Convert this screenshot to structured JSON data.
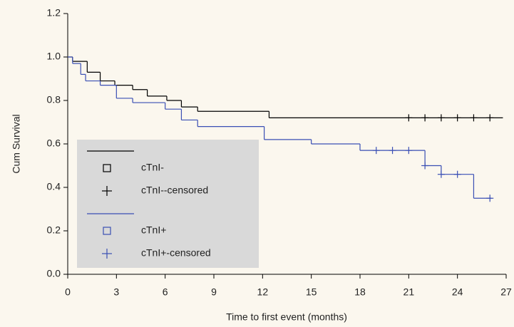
{
  "chart_data": {
    "type": "step",
    "x_label": "Time to first event (months)",
    "y_label": "Cum Survival",
    "xlim": [
      0,
      27
    ],
    "xticks": [
      0,
      3,
      6,
      9,
      12,
      15,
      18,
      21,
      24,
      27
    ],
    "ylim": [
      0,
      1.2
    ],
    "yticks": [
      {
        "value": 0,
        "label": "0.0"
      },
      0.2,
      0.4,
      0.6,
      0.8,
      {
        "value": 1,
        "label": "1.0"
      },
      1.2
    ],
    "grid": false,
    "legend": "lower-left",
    "series": [
      {
        "name": "cTnI-",
        "color": "#000000",
        "x": [
          0,
          0.3,
          1.2,
          2.0,
          2.9,
          4.0,
          4.9,
          6.1,
          7.0,
          8.0,
          12.4,
          26.8
        ],
        "values": [
          1.0,
          0.98,
          0.93,
          0.89,
          0.87,
          0.85,
          0.82,
          0.8,
          0.77,
          0.75,
          0.72,
          0.72
        ]
      },
      {
        "name": "cTnI--censored",
        "color": "#000000",
        "marker": "plus",
        "x": [
          21,
          22,
          23,
          24,
          25,
          26
        ],
        "values": [
          0.72,
          0.72,
          0.72,
          0.72,
          0.72,
          0.72
        ]
      },
      {
        "name": "cTnI+",
        "color": "#3a4fb4",
        "x": [
          0,
          0.3,
          0.8,
          1.1,
          2.0,
          3.0,
          4.0,
          6.0,
          7.0,
          8.0,
          12.1,
          15.0,
          18.0,
          22.0,
          23.0,
          25.0,
          26.1
        ],
        "values": [
          1.0,
          0.97,
          0.92,
          0.89,
          0.87,
          0.81,
          0.79,
          0.76,
          0.71,
          0.68,
          0.62,
          0.6,
          0.57,
          0.5,
          0.46,
          0.35,
          0.35
        ]
      },
      {
        "name": "cTnI+-censored",
        "color": "#3a4fb4",
        "marker": "plus",
        "x": [
          19,
          20,
          21,
          22,
          23,
          24,
          26
        ],
        "values": [
          0.57,
          0.57,
          0.57,
          0.5,
          0.46,
          0.46,
          0.35
        ]
      }
    ]
  }
}
